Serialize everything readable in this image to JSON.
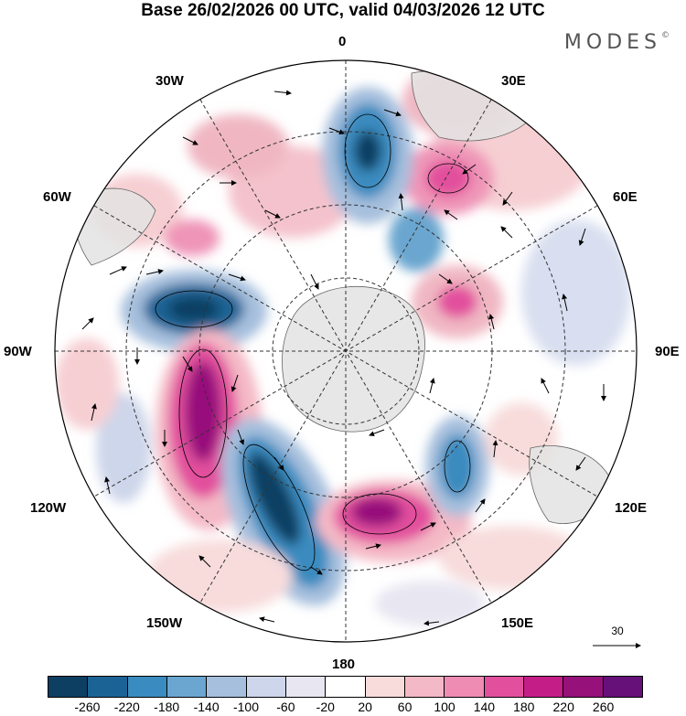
{
  "title": "Base 26/02/2026 00 UTC, valid 04/03/2026 12 UTC",
  "brand": "MODES",
  "brand_mark": "©",
  "longitudes": {
    "lon_0": "0",
    "lon_30e": "30E",
    "lon_60e": "60E",
    "lon_90e": "90E",
    "lon_120e": "120E",
    "lon_150e": "150E",
    "lon_180": "180",
    "lon_150w": "150W",
    "lon_120w": "120W",
    "lon_90w": "90W",
    "lon_60w": "60W",
    "lon_30w": "30W"
  },
  "wind_scale": {
    "label": "30"
  },
  "colorbar": {
    "colors": [
      "#0d3f63",
      "#1a6394",
      "#3a8bbf",
      "#6aa6cf",
      "#a6bfdd",
      "#cdd6ea",
      "#e8e6f1",
      "#ffffff",
      "#f8dcdc",
      "#f4b9c6",
      "#ee8cb4",
      "#e2509d",
      "#c41d87",
      "#97117b",
      "#66107a"
    ],
    "ticks": [
      "-260",
      "-220",
      "-180",
      "-140",
      "-100",
      "-60",
      "-20",
      "20",
      "60",
      "100",
      "140",
      "180",
      "220",
      "260"
    ]
  },
  "colors": {
    "land": "#e3e3e3",
    "grid": "#333333",
    "outline": "#000000"
  }
}
